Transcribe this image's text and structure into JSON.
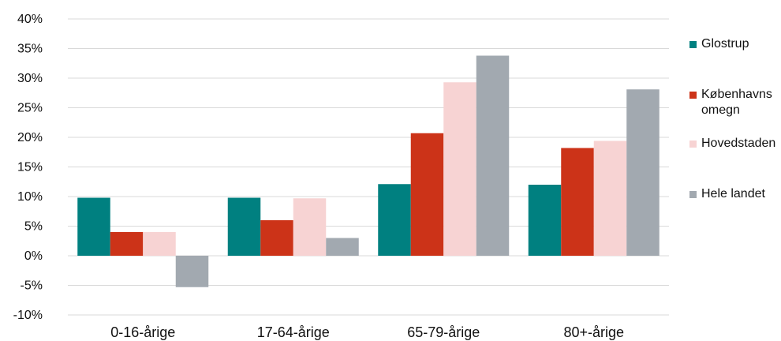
{
  "chart_data": {
    "type": "bar",
    "categories": [
      "0-16-årige",
      "17-64-årige",
      "65-79-årige",
      "80+-årige"
    ],
    "series": [
      {
        "name": "Glostrup",
        "color": "#008080",
        "values": [
          9.8,
          9.8,
          12.1,
          12.0
        ]
      },
      {
        "name": "Københavns omegn",
        "color": "#cc3318",
        "values": [
          4.0,
          6.0,
          20.7,
          18.2
        ]
      },
      {
        "name": "Hovedstaden",
        "color": "#f7d3d3",
        "values": [
          4.0,
          9.7,
          29.3,
          19.4
        ]
      },
      {
        "name": "Hele landet",
        "color": "#a2a9b0",
        "values": [
          -5.3,
          3.0,
          33.8,
          28.1
        ]
      }
    ],
    "yticks": [
      "-10%",
      "-5%",
      "0%",
      "5%",
      "10%",
      "15%",
      "20%",
      "25%",
      "30%",
      "35%",
      "40%"
    ],
    "ylim": [
      -10,
      40
    ],
    "grid": true,
    "legend_position": "right",
    "title": "",
    "xlabel": "",
    "ylabel": ""
  }
}
